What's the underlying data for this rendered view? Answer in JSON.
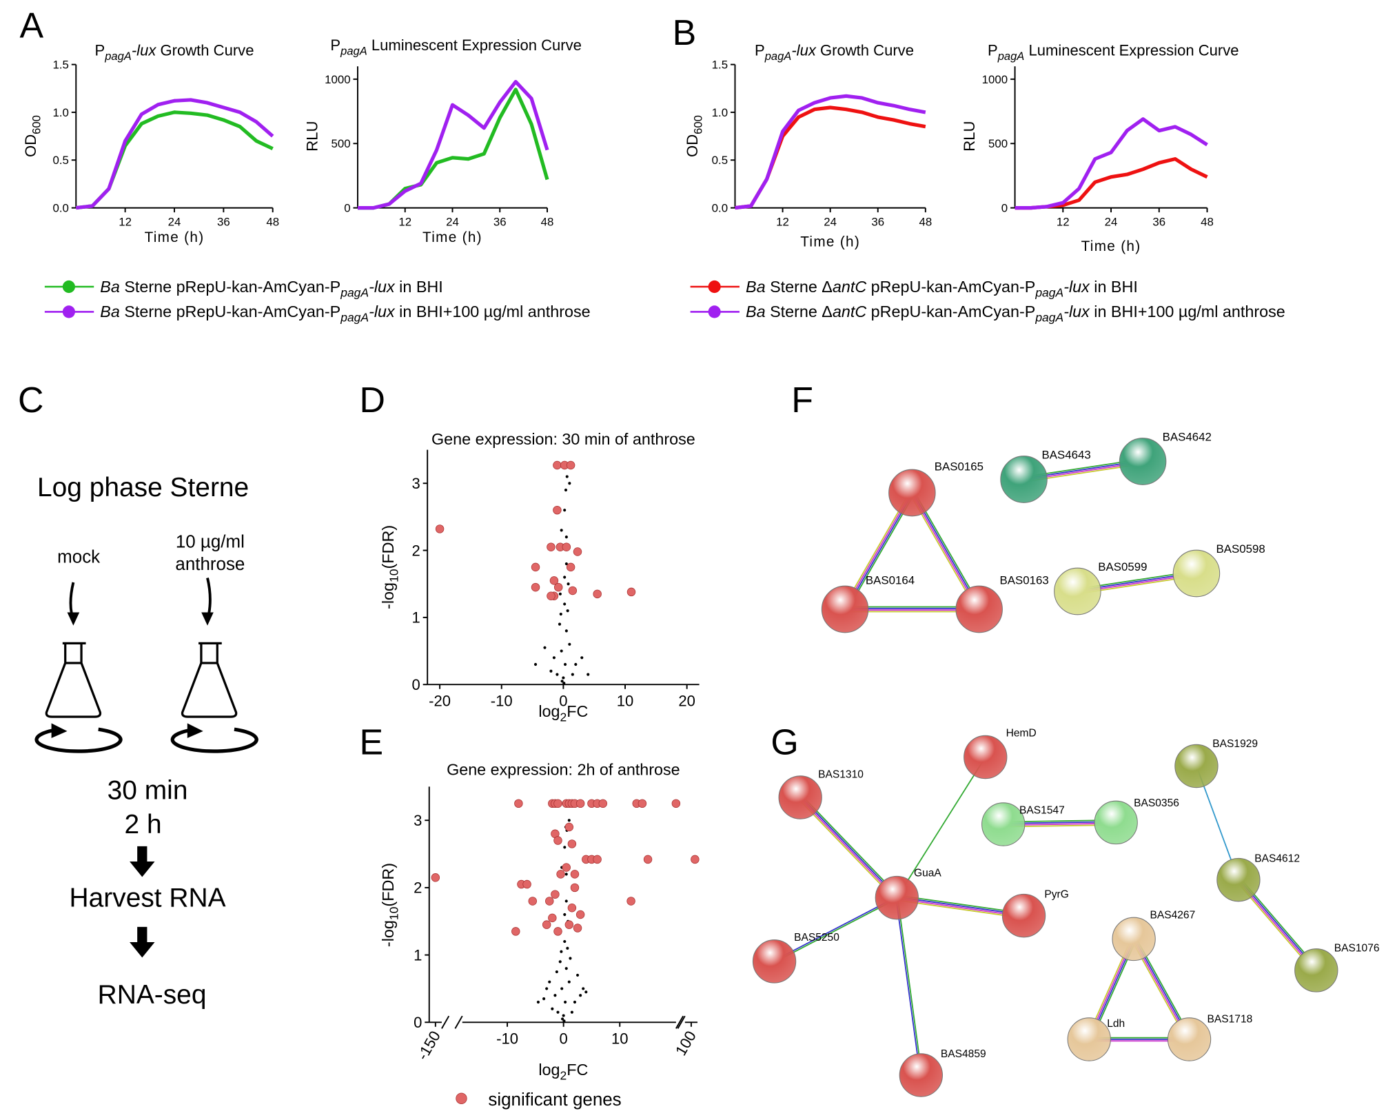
{
  "panel_labels": [
    "A",
    "B",
    "C",
    "D",
    "E",
    "F",
    "G"
  ],
  "chart_data": [
    {
      "type": "line",
      "title": [
        "P",
        "pagA",
        "-lux",
        " Growth Curve"
      ],
      "title_styles": [
        "",
        "si",
        "i",
        ""
      ],
      "ylabel": [
        "OD",
        "600"
      ],
      "ylabel_styles": [
        "",
        "s"
      ],
      "xlabel": "Time (h)",
      "x": [
        0,
        4,
        8,
        12,
        16,
        20,
        24,
        28,
        32,
        36,
        40,
        44,
        48
      ],
      "xlim": [
        0,
        48
      ],
      "xticks": [
        12,
        24,
        36,
        48
      ],
      "ylim": [
        0,
        1.5
      ],
      "yticks": [
        {
          "value": 0,
          "label": "0.0"
        },
        {
          "value": 0.5,
          "label": "0.5"
        },
        {
          "value": 1,
          "label": "1.0"
        },
        {
          "value": 1.5,
          "label": "1.5"
        }
      ],
      "series": [
        {
          "name": [
            "Ba",
            " Sterne pRepU-kan-AmCyan-P",
            "pagA",
            "-lux",
            " in BHI"
          ],
          "name_styles": [
            "i",
            "",
            "si",
            "i",
            ""
          ],
          "color": "#22bb22",
          "values": [
            0,
            0.02,
            0.2,
            0.65,
            0.88,
            0.96,
            1.0,
            0.99,
            0.97,
            0.92,
            0.85,
            0.7,
            0.62
          ]
        },
        {
          "name": [
            "Ba",
            " Sterne pRepU-kan-AmCyan-P",
            "pagA",
            "-lux",
            " in BHI+100 µg/ml anthrose"
          ],
          "name_styles": [
            "i",
            "",
            "si",
            "i",
            ""
          ],
          "color": "#a020f0",
          "values": [
            0,
            0.02,
            0.2,
            0.7,
            0.98,
            1.08,
            1.12,
            1.13,
            1.1,
            1.05,
            1.0,
            0.9,
            0.75
          ]
        }
      ]
    },
    {
      "type": "line",
      "title": [
        "P",
        "pagA",
        " Luminescent Expression Curve"
      ],
      "title_styles": [
        "",
        "si",
        ""
      ],
      "ylabel": [
        "RLU"
      ],
      "ylabel_styles": [
        ""
      ],
      "xlabel": "Time (h)",
      "x": [
        0,
        4,
        8,
        12,
        16,
        20,
        24,
        28,
        32,
        36,
        40,
        44,
        48
      ],
      "xlim": [
        0,
        48
      ],
      "xticks": [
        12,
        24,
        36,
        48
      ],
      "ylim": [
        0,
        1100
      ],
      "yticks": [
        0,
        500,
        1000
      ],
      "series": [
        {
          "color": "#22bb22",
          "values": [
            0,
            0,
            30,
            150,
            180,
            350,
            390,
            380,
            420,
            700,
            920,
            650,
            220
          ]
        },
        {
          "color": "#a020f0",
          "values": [
            0,
            0,
            30,
            130,
            190,
            450,
            800,
            720,
            620,
            820,
            980,
            850,
            450
          ]
        }
      ]
    },
    {
      "type": "line",
      "title": [
        "P",
        "pagA",
        "-lux",
        " Growth Curve"
      ],
      "title_styles": [
        "",
        "si",
        "i",
        ""
      ],
      "ylabel": [
        "OD",
        "600"
      ],
      "ylabel_styles": [
        "",
        "s"
      ],
      "xlabel": "Time (h)",
      "x": [
        0,
        4,
        8,
        12,
        16,
        20,
        24,
        28,
        32,
        36,
        40,
        44,
        48
      ],
      "xlim": [
        0,
        48
      ],
      "xticks": [
        12,
        24,
        36,
        48
      ],
      "ylim": [
        0,
        1.5
      ],
      "yticks": [
        {
          "value": 0,
          "label": "0.0"
        },
        {
          "value": 0.5,
          "label": "0.5"
        },
        {
          "value": 1,
          "label": "1.0"
        },
        {
          "value": 1.5,
          "label": "1.5"
        }
      ],
      "series": [
        {
          "name": [
            "Ba",
            " Sterne Δ",
            "antC",
            " pRepU-kan-AmCyan-P",
            "pagA",
            "-lux",
            " in BHI"
          ],
          "name_styles": [
            "i",
            "",
            "i",
            "",
            "si",
            "i",
            ""
          ],
          "color": "#ee1111",
          "values": [
            0,
            0.02,
            0.3,
            0.75,
            0.95,
            1.03,
            1.05,
            1.03,
            1.0,
            0.95,
            0.92,
            0.88,
            0.85
          ]
        },
        {
          "name": [
            "Ba",
            " Sterne Δ",
            "antC",
            " pRepU-kan-AmCyan-P",
            "pagA",
            "-lux",
            " in BHI+100 µg/ml anthrose"
          ],
          "name_styles": [
            "i",
            "",
            "i",
            "",
            "si",
            "i",
            ""
          ],
          "color": "#a020f0",
          "values": [
            0,
            0.02,
            0.3,
            0.8,
            1.02,
            1.1,
            1.15,
            1.17,
            1.15,
            1.1,
            1.07,
            1.03,
            1.0
          ]
        }
      ]
    },
    {
      "type": "line",
      "title": [
        "P",
        "pagA",
        " Luminescent Expression Curve"
      ],
      "title_styles": [
        "",
        "si",
        ""
      ],
      "ylabel": [
        "RLU"
      ],
      "ylabel_styles": [
        ""
      ],
      "xlabel": "Time (h)",
      "x": [
        0,
        4,
        8,
        12,
        16,
        20,
        24,
        28,
        32,
        36,
        40,
        44,
        48
      ],
      "xlim": [
        0,
        48
      ],
      "xticks": [
        12,
        24,
        36,
        48
      ],
      "ylim": [
        0,
        1100
      ],
      "yticks": [
        0,
        500,
        1000
      ],
      "series": [
        {
          "color": "#ee1111",
          "values": [
            0,
            0,
            10,
            20,
            60,
            200,
            240,
            260,
            300,
            350,
            380,
            300,
            240
          ]
        },
        {
          "color": "#a020f0",
          "values": [
            0,
            0,
            10,
            40,
            150,
            380,
            430,
            600,
            690,
            600,
            630,
            570,
            490
          ]
        }
      ]
    },
    {
      "type": "scatter",
      "title": [
        "Gene expression: 30 min of anthrose"
      ],
      "title_styles": [
        ""
      ],
      "ylabel": [
        "-log",
        "10",
        "(FDR)"
      ],
      "ylabel_styles": [
        "",
        "s",
        ""
      ],
      "xlabel": [
        "log",
        "2",
        "FC"
      ],
      "xlabel_styles": [
        "",
        "s",
        ""
      ],
      "xlim": [
        -22,
        22
      ],
      "xticks": [
        -20,
        -10,
        0,
        10,
        20
      ],
      "ylim": [
        0,
        3.5
      ],
      "yticks": [
        0,
        1,
        2,
        3
      ],
      "series": [
        {
          "color": "#000000",
          "x": [
            0,
            0.3,
            -0.3,
            0.5,
            -0.6,
            1,
            -1.5,
            2,
            -3,
            3,
            -2,
            0.2,
            -0.4,
            0.7,
            0.2,
            0.5,
            0.2,
            -0.3,
            0.4,
            1,
            0.6,
            -0.2,
            0.1,
            1.5,
            -1,
            4,
            -4.5,
            0.5,
            -0.5,
            0.8
          ],
          "y": [
            0.1,
            0.3,
            0.5,
            0.8,
            0.9,
            0.6,
            0.4,
            0.3,
            0.55,
            0.4,
            0.2,
            1.2,
            1.05,
            1.1,
            1.6,
            2.2,
            2.6,
            2.3,
            2.9,
            3.0,
            3.1,
            0.05,
            0.02,
            0.15,
            0.15,
            0.15,
            0.3,
            1.8,
            1.35,
            1.5
          ]
        },
        {
          "name": "significant genes",
          "color": "#e06666",
          "x": [
            -20,
            -1,
            0.2,
            1.2,
            -1,
            -0.5,
            -2,
            0.5,
            2.3,
            -4.5,
            1.2,
            -4.5,
            -1.5,
            -0.8,
            -1.5,
            -2,
            1.5,
            5.5,
            11
          ],
          "y": [
            2.32,
            3.27,
            3.27,
            3.27,
            2.6,
            2.05,
            2.05,
            2.05,
            1.98,
            1.75,
            1.75,
            1.45,
            1.55,
            1.45,
            1.32,
            1.32,
            1.4,
            1.35,
            1.38
          ]
        }
      ]
    },
    {
      "type": "scatter",
      "title": [
        "Gene expression: 2h of anthrose"
      ],
      "title_styles": [
        ""
      ],
      "ylabel": [
        "-log",
        "10",
        "(FDR)"
      ],
      "ylabel_styles": [
        "",
        "s",
        ""
      ],
      "xlabel": [
        "log",
        "2",
        "FC"
      ],
      "xlabel_styles": [
        "",
        "s",
        ""
      ],
      "x_segments": [
        [
          -155,
          -145
        ],
        [
          -18,
          20
        ],
        [
          95,
          105
        ]
      ],
      "xticks": [
        -150,
        -10,
        0,
        10,
        100
      ],
      "ylim": [
        0,
        3.5
      ],
      "yticks": [
        0,
        1,
        2,
        3
      ],
      "series": [
        {
          "color": "#000000",
          "x": [
            0,
            0.3,
            -0.3,
            0.5,
            -0.6,
            1,
            -1.5,
            2,
            -3,
            3,
            -2,
            0.2,
            -0.4,
            0.7,
            0.2,
            0.5,
            0.2,
            -0.3,
            0.4,
            1,
            0.6,
            -0.2,
            0.1,
            1.5,
            -1,
            4,
            -4.5,
            0.5,
            -0.5,
            0.8,
            -2.5,
            2.5,
            3.5,
            -3.5,
            1.2,
            -1.2
          ],
          "y": [
            0.1,
            0.3,
            0.5,
            0.8,
            0.9,
            0.6,
            0.4,
            0.3,
            0.5,
            0.4,
            0.2,
            1.2,
            1.05,
            1.1,
            1.6,
            2.2,
            2.6,
            2.3,
            2.9,
            3.0,
            2.85,
            0.05,
            0.02,
            0.15,
            0.15,
            0.45,
            0.3,
            1.8,
            1.35,
            1.5,
            0.6,
            0.7,
            0.5,
            0.35,
            0.95,
            0.75
          ]
        },
        {
          "name": "significant genes",
          "color": "#e06666",
          "x": [
            -8,
            -2,
            -1.5,
            -1,
            0.5,
            1,
            1.5,
            2,
            3,
            5,
            6,
            7,
            13,
            14,
            20,
            -150,
            103,
            15,
            4,
            5,
            6,
            -7.5,
            -6.5,
            -5.5,
            -8.5,
            12,
            -1.5,
            -1,
            1.5,
            1,
            -1.5,
            2,
            1.5,
            -2,
            -3,
            3,
            2.5,
            -1,
            1,
            0.5,
            -0.5,
            -2.5,
            2
          ],
          "y": [
            3.25,
            3.25,
            3.25,
            3.25,
            3.25,
            3.25,
            3.25,
            3.25,
            3.25,
            3.25,
            3.25,
            3.25,
            3.25,
            3.25,
            3.25,
            2.15,
            2.42,
            2.42,
            2.42,
            2.42,
            2.42,
            2.05,
            2.05,
            1.8,
            1.35,
            1.8,
            2.8,
            2.7,
            2.65,
            2.9,
            1.9,
            2.0,
            1.7,
            1.55,
            1.45,
            1.6,
            1.4,
            1.35,
            1.45,
            2.3,
            2.2,
            1.8,
            2.2
          ]
        }
      ]
    }
  ],
  "diagram": {
    "title": "Log phase Sterne",
    "mock": "mock",
    "dose": "10 µg/ml",
    "agent": "anthrose",
    "time1": "30 min",
    "time2": "2 h",
    "step1": "Harvest RNA",
    "step2": "RNA-seq"
  },
  "networks": {
    "F": {
      "nodes": [
        {
          "label": "BAS0165",
          "color": "#d9534f"
        },
        {
          "label": "BAS0164",
          "color": "#d9534f"
        },
        {
          "label": "BAS0163",
          "color": "#d9534f"
        },
        {
          "label": "BAS4643",
          "color": "#3fa37a"
        },
        {
          "label": "BAS4642",
          "color": "#3fa37a"
        },
        {
          "label": "BAS0599",
          "color": "#d8de8a"
        },
        {
          "label": "BAS0598",
          "color": "#d8de8a"
        }
      ]
    },
    "G": {
      "nodes": [
        {
          "label": "HemD",
          "color": "#d9534f"
        },
        {
          "label": "BAS1310",
          "color": "#d9534f"
        },
        {
          "label": "GuaA",
          "color": "#d9534f"
        },
        {
          "label": "PyrG",
          "color": "#d9534f"
        },
        {
          "label": "BAS5250",
          "color": "#d9534f"
        },
        {
          "label": "BAS4859",
          "color": "#d9534f"
        },
        {
          "label": "BAS1547",
          "color": "#8fdc8f"
        },
        {
          "label": "BAS0356",
          "color": "#8fdc8f"
        },
        {
          "label": "BAS1929",
          "color": "#9aaa4a"
        },
        {
          "label": "BAS4612",
          "color": "#9aaa4a"
        },
        {
          "label": "BAS1076",
          "color": "#9aaa4a"
        },
        {
          "label": "BAS4267",
          "color": "#e6c79a"
        },
        {
          "label": "Ldh",
          "color": "#e6c79a"
        },
        {
          "label": "BAS1718",
          "color": "#e6c79a"
        }
      ]
    }
  }
}
